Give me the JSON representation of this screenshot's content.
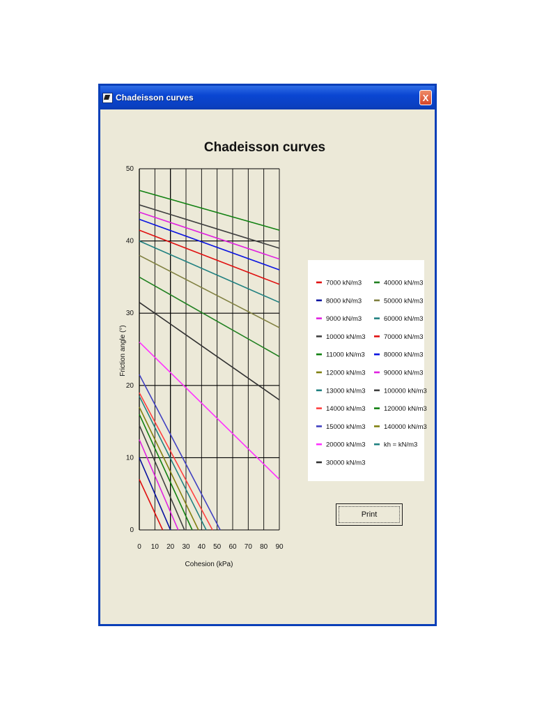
{
  "window": {
    "title": "Chadeisson curves",
    "close_symbol": "X"
  },
  "print_label": "Print",
  "chart_data": {
    "type": "line",
    "title": "Chadeisson curves",
    "xlabel": "Cohesion (kPa)",
    "ylabel": "Friction angle (°)",
    "xlim": [
      0,
      90
    ],
    "ylim": [
      0,
      50
    ],
    "xticks": [
      0,
      10,
      20,
      30,
      40,
      50,
      60,
      70,
      80,
      90
    ],
    "yticks": [
      0,
      10,
      20,
      30,
      40,
      50
    ],
    "grid": true,
    "legend_position": "right",
    "series": [
      {
        "name": "7000 kN/m3",
        "color": "#e01010",
        "points": [
          [
            0,
            7
          ],
          [
            15,
            0
          ]
        ]
      },
      {
        "name": "8000 kN/m3",
        "color": "#0a14a0",
        "points": [
          [
            0,
            10
          ],
          [
            20,
            0
          ]
        ]
      },
      {
        "name": "9000 kN/m3",
        "color": "#e020e0",
        "points": [
          [
            0,
            12.5
          ],
          [
            25,
            0
          ]
        ]
      },
      {
        "name": "10000 kN/m3",
        "color": "#404040",
        "points": [
          [
            0,
            14.5
          ],
          [
            29,
            0
          ]
        ]
      },
      {
        "name": "11000 kN/m3",
        "color": "#108010",
        "points": [
          [
            0,
            16
          ],
          [
            34,
            0
          ]
        ]
      },
      {
        "name": "12000 kN/m3",
        "color": "#808010",
        "points": [
          [
            0,
            17
          ],
          [
            38,
            0
          ]
        ]
      },
      {
        "name": "13000 kN/m3",
        "color": "#208080",
        "points": [
          [
            0,
            18.5
          ],
          [
            43,
            0
          ]
        ]
      },
      {
        "name": "14000 kN/m3",
        "color": "#ff4040",
        "points": [
          [
            0,
            19
          ],
          [
            47,
            0
          ]
        ]
      },
      {
        "name": "15000 kN/m3",
        "color": "#4040c0",
        "points": [
          [
            0,
            21.5
          ],
          [
            52,
            0
          ]
        ]
      },
      {
        "name": "20000 kN/m3",
        "color": "#ff30ff",
        "points": [
          [
            0,
            26
          ],
          [
            90,
            7
          ]
        ]
      },
      {
        "name": "30000 kN/m3",
        "color": "#303030",
        "points": [
          [
            0,
            31.5
          ],
          [
            90,
            18
          ]
        ]
      },
      {
        "name": "40000 kN/m3",
        "color": "#208020",
        "points": [
          [
            0,
            35
          ],
          [
            90,
            24
          ]
        ]
      },
      {
        "name": "50000 kN/m3",
        "color": "#808040",
        "points": [
          [
            0,
            38
          ],
          [
            90,
            28
          ]
        ]
      },
      {
        "name": "60000 kN/m3",
        "color": "#208080",
        "points": [
          [
            0,
            40
          ],
          [
            90,
            31.5
          ]
        ]
      },
      {
        "name": "70000 kN/m3",
        "color": "#e01010",
        "points": [
          [
            0,
            41.5
          ],
          [
            90,
            34
          ]
        ]
      },
      {
        "name": "80000 kN/m3",
        "color": "#0a14e0",
        "points": [
          [
            0,
            43
          ],
          [
            90,
            36
          ]
        ]
      },
      {
        "name": "90000 kN/m3",
        "color": "#e020e0",
        "points": [
          [
            0,
            44
          ],
          [
            90,
            37.5
          ]
        ]
      },
      {
        "name": "100000 kN/m3",
        "color": "#404040",
        "points": [
          [
            0,
            45
          ],
          [
            90,
            39
          ]
        ]
      },
      {
        "name": "120000 kN/m3",
        "color": "#108010",
        "points": [
          [
            0,
            47
          ],
          [
            90,
            41.5
          ]
        ]
      },
      {
        "name": "140000 kN/m3",
        "color": "#808010",
        "points": []
      },
      {
        "name": "kh =  kN/m3",
        "color": "#208080",
        "points": []
      }
    ]
  }
}
